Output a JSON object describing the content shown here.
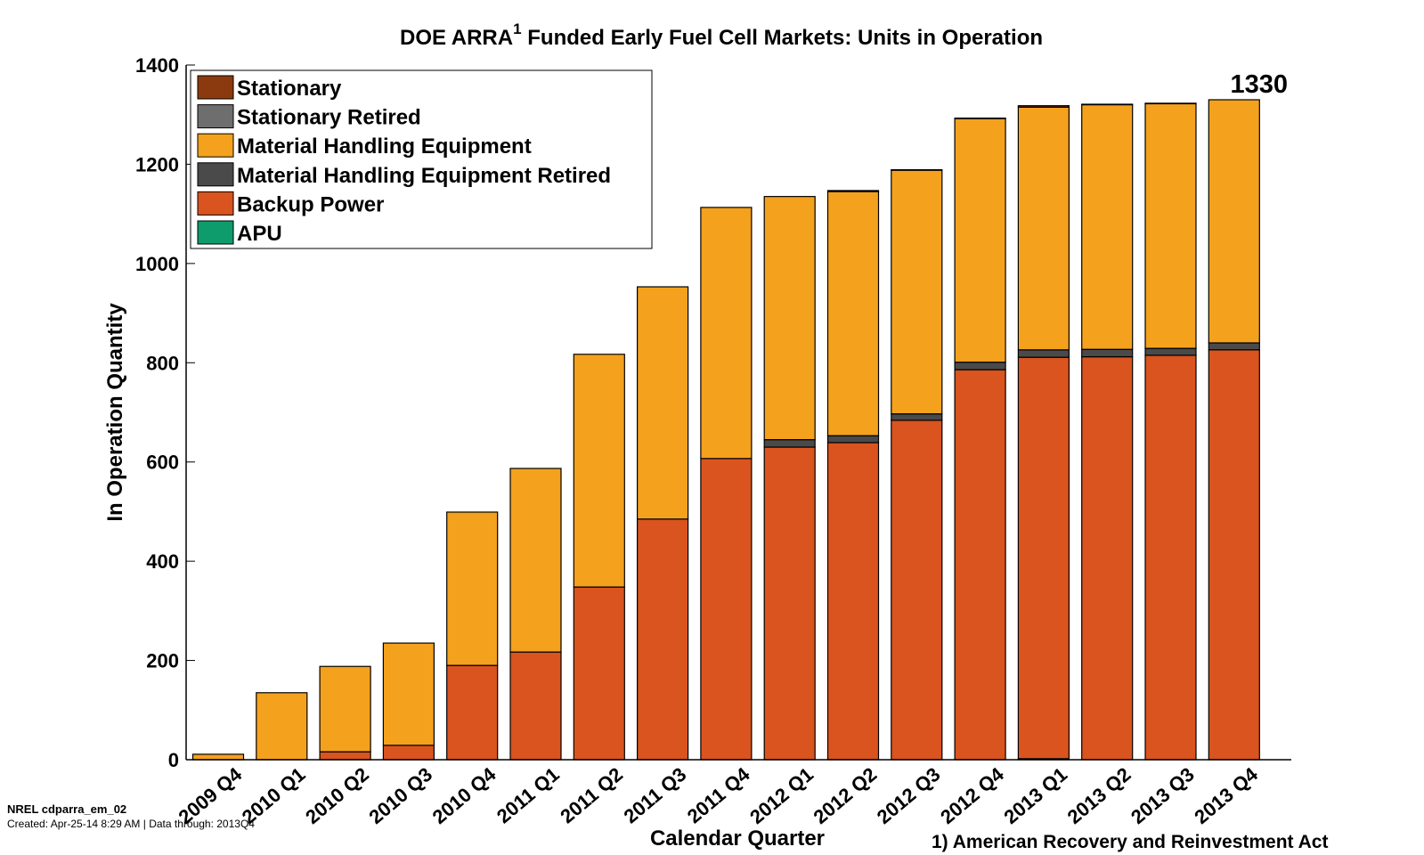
{
  "chart_data": {
    "type": "bar",
    "stacked": true,
    "title": "DOE ARRA",
    "title_superscript": "1",
    "title_rest": " Funded Early Fuel Cell Markets:  Units in Operation",
    "xlabel": "Calendar Quarter",
    "ylabel": "In Operation Quantity",
    "ylim": [
      0,
      1400
    ],
    "yticks": [
      0,
      200,
      400,
      600,
      800,
      1000,
      1200,
      1400
    ],
    "grid": false,
    "legend_position": "top-left",
    "categories": [
      "2009 Q4",
      "2010 Q1",
      "2010 Q2",
      "2010 Q3",
      "2010 Q4",
      "2011 Q1",
      "2011 Q2",
      "2011 Q3",
      "2011 Q4",
      "2012 Q1",
      "2012 Q2",
      "2012 Q3",
      "2012 Q4",
      "2013 Q1",
      "2013 Q2",
      "2013 Q3",
      "2013 Q4"
    ],
    "stack_order": [
      "APU",
      "Backup Power",
      "Material Handling Equipment Retired",
      "Material Handling Equipment",
      "Stationary Retired",
      "Stationary"
    ],
    "series": [
      {
        "name": "Stationary",
        "color": "#8B3A0F",
        "values": [
          0,
          0,
          0,
          0,
          0,
          0,
          0,
          0,
          0,
          0,
          2,
          1,
          1,
          3,
          1,
          1,
          0
        ]
      },
      {
        "name": "Stationary Retired",
        "color": "#6E6E6E",
        "values": [
          0,
          0,
          0,
          0,
          0,
          0,
          0,
          0,
          0,
          0,
          0,
          0,
          0,
          0,
          0,
          0,
          0
        ]
      },
      {
        "name": "Material Handling Equipment",
        "color": "#F4A11D",
        "values": [
          11,
          135,
          172,
          206,
          309,
          370,
          469,
          468,
          506,
          490,
          492,
          491,
          491,
          489,
          493,
          493,
          490
        ]
      },
      {
        "name": "Material Handling Equipment Retired",
        "color": "#4A4A4A",
        "values": [
          0,
          0,
          0,
          0,
          0,
          0,
          0,
          0,
          0,
          15,
          14,
          13,
          15,
          15,
          15,
          14,
          14
        ]
      },
      {
        "name": "Backup Power",
        "color": "#D9541E",
        "values": [
          0,
          0,
          16,
          29,
          190,
          217,
          348,
          485,
          607,
          630,
          639,
          684,
          786,
          809,
          812,
          815,
          826
        ]
      },
      {
        "name": "APU",
        "color": "#0E9C6C",
        "values": [
          0,
          0,
          0,
          0,
          0,
          0,
          0,
          0,
          0,
          0,
          0,
          0,
          0,
          2,
          0,
          0,
          0
        ]
      }
    ],
    "totals": [
      11,
      135,
      188,
      235,
      499,
      587,
      817,
      953,
      1113,
      1135,
      1147,
      1189,
      1293,
      1318,
      1321,
      1323,
      1330
    ],
    "annotations": [
      {
        "category": "2013 Q4",
        "text": "1330"
      }
    ],
    "footnote": "1) American Recovery and Reinvestment Act"
  },
  "footer": {
    "id_line": "NREL cdparra_em_02",
    "created_line": "Created: Apr-25-14  8:29 AM | Data through: 2013Q4"
  }
}
